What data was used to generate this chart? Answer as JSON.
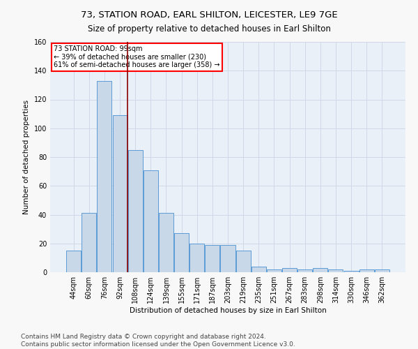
{
  "title": "73, STATION ROAD, EARL SHILTON, LEICESTER, LE9 7GE",
  "subtitle": "Size of property relative to detached houses in Earl Shilton",
  "xlabel": "Distribution of detached houses by size in Earl Shilton",
  "ylabel": "Number of detached properties",
  "categories": [
    "44sqm",
    "60sqm",
    "76sqm",
    "92sqm",
    "108sqm",
    "124sqm",
    "139sqm",
    "155sqm",
    "171sqm",
    "187sqm",
    "203sqm",
    "219sqm",
    "235sqm",
    "251sqm",
    "267sqm",
    "283sqm",
    "298sqm",
    "314sqm",
    "330sqm",
    "346sqm",
    "362sqm"
  ],
  "values": [
    15,
    41,
    133,
    109,
    85,
    71,
    41,
    27,
    20,
    19,
    19,
    15,
    4,
    2,
    3,
    2,
    3,
    2,
    1,
    2,
    2
  ],
  "bar_color": "#c8d8e8",
  "bar_edge_color": "#5b9bd5",
  "grid_color": "#d0d8e8",
  "bg_color": "#eaf0f8",
  "fig_bg_color": "#f8f8f8",
  "red_line_x": 3.5,
  "red_line_label": "73 STATION ROAD: 99sqm",
  "annotation_line1": "← 39% of detached houses are smaller (230)",
  "annotation_line2": "61% of semi-detached houses are larger (358) →",
  "box_color": "white",
  "box_edge_color": "red",
  "footer1": "Contains HM Land Registry data © Crown copyright and database right 2024.",
  "footer2": "Contains public sector information licensed under the Open Government Licence v3.0.",
  "ylim": [
    0,
    160
  ],
  "yticks": [
    0,
    20,
    40,
    60,
    80,
    100,
    120,
    140,
    160
  ],
  "title_fontsize": 9.5,
  "subtitle_fontsize": 8.5,
  "axis_label_fontsize": 7.5,
  "tick_fontsize": 7,
  "annotation_fontsize": 7,
  "footer_fontsize": 6.5
}
